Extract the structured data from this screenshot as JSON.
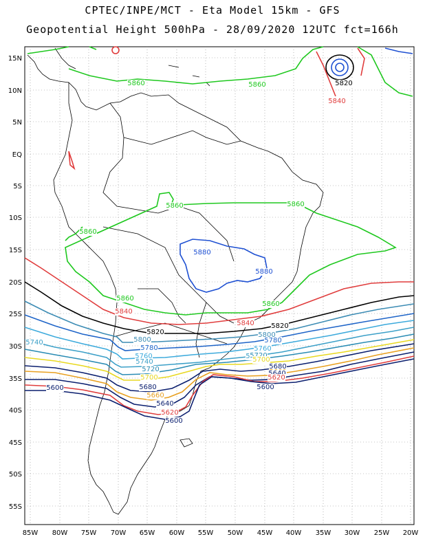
{
  "header": {
    "title_line1": "CPTEC/INPE/MCT -  Eta Model 15km - GFS",
    "title_line2": "Geopotential Height 500hPa - 28/09/2020 12UTC fct=166h"
  },
  "axes": {
    "lat_labels": [
      "15N",
      "10N",
      "5N",
      "EQ",
      "5S",
      "10S",
      "15S",
      "20S",
      "25S",
      "30S",
      "35S",
      "40S",
      "45S",
      "50S",
      "55S"
    ],
    "lon_labels": [
      "85W",
      "80W",
      "75W",
      "70W",
      "65W",
      "60W",
      "55W",
      "50W",
      "45W",
      "40W",
      "35W",
      "30W",
      "25W",
      "20W"
    ],
    "grid": "dotted"
  },
  "contour_colors": {
    "5600": "#0a1e6e",
    "5620": "#e03c3c",
    "5640": "#0a1e6e",
    "5660": "#e8a020",
    "5680": "#0a1e6e",
    "5700": "#e8d820",
    "5720": "#2a8cb4",
    "5740": "#3ca0c8",
    "5760": "#3caadc",
    "5780": "#1e64c8",
    "5800": "#3c8cb4",
    "5820": "#000000",
    "5840": "#e03c3c",
    "5860": "#1ec81e",
    "5880": "#1e50d2"
  },
  "contour_labels": [
    {
      "text": "5860",
      "color": "5860"
    },
    {
      "text": "5860",
      "color": "5860"
    },
    {
      "text": "5820",
      "color": "5820"
    },
    {
      "text": "5840",
      "color": "5840"
    },
    {
      "text": "5860",
      "color": "5860"
    },
    {
      "text": "5860",
      "color": "5860"
    },
    {
      "text": "5860",
      "color": "5860"
    },
    {
      "text": "5880",
      "color": "5880"
    },
    {
      "text": "5880",
      "color": "5880"
    },
    {
      "text": "5860",
      "color": "5860"
    },
    {
      "text": "5860",
      "color": "5860"
    },
    {
      "text": "5840",
      "color": "5840"
    },
    {
      "text": "5840",
      "color": "5840"
    },
    {
      "text": "5820",
      "color": "5820"
    },
    {
      "text": "5820",
      "color": "5820"
    },
    {
      "text": "5800",
      "color": "5800"
    },
    {
      "text": "5800",
      "color": "5800"
    },
    {
      "text": "5780",
      "color": "5780"
    },
    {
      "text": "5780",
      "color": "5780"
    },
    {
      "text": "5760",
      "color": "5760"
    },
    {
      "text": "5760",
      "color": "5760"
    },
    {
      "text": "5740",
      "color": "5740"
    },
    {
      "text": "5740",
      "color": "5740"
    },
    {
      "text": "5740",
      "color": "5740"
    },
    {
      "text": "5720",
      "color": "5720"
    },
    {
      "text": "5720",
      "color": "5720"
    },
    {
      "text": "5700",
      "color": "5700"
    },
    {
      "text": "5700",
      "color": "5700"
    },
    {
      "text": "5680",
      "color": "5680"
    },
    {
      "text": "5680",
      "color": "5680"
    },
    {
      "text": "5660",
      "color": "5660"
    },
    {
      "text": "5660",
      "color": "5660"
    },
    {
      "text": "5640",
      "color": "5640"
    },
    {
      "text": "5640",
      "color": "5640"
    },
    {
      "text": "5620",
      "color": "5620"
    },
    {
      "text": "5620",
      "color": "5620"
    },
    {
      "text": "5600",
      "color": "5600"
    },
    {
      "text": "5600",
      "color": "5600"
    },
    {
      "text": "5600",
      "color": "5600"
    }
  ]
}
